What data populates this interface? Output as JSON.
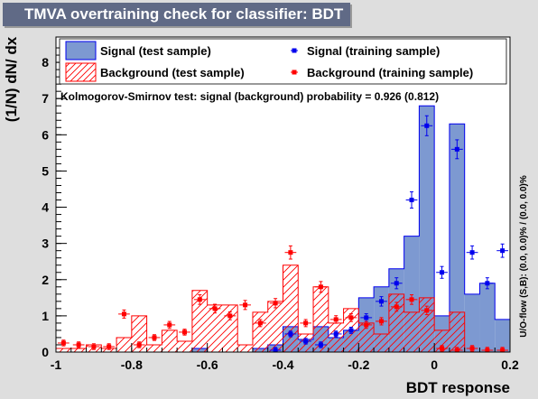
{
  "window": {
    "title": "TMVA overtraining check for classifier: BDT"
  },
  "legend": {
    "items": [
      "Signal (test sample)",
      "Background (test sample)",
      "Signal (training sample)",
      "Background (training sample)"
    ]
  },
  "ks_text": "Kolmogorov-Smirnov test: signal (background) probability = 0.926 (0.812)",
  "overflow_text": "U/O-flow (S,B): (0.0, 0.0)% / (0.0, 0.0)%",
  "colors": {
    "signal_fill": "#7d99d1",
    "signal_line": "#0000ee",
    "background": "#ff0000",
    "frame_bg": "#ffffff",
    "page_bg": "#dedede",
    "title_bg": "#606a86"
  },
  "chart_data": {
    "type": "histogram",
    "xlabel": "BDT response",
    "ylabel": "(1/N) dN/ dx",
    "xlim": [
      -1.0,
      0.2
    ],
    "ylim": [
      0,
      8.7
    ],
    "x_ticks": [
      "-1",
      "-0.8",
      "-0.6",
      "-0.4",
      "-0.2",
      "0",
      "0.2"
    ],
    "y_ticks": [
      "0",
      "1",
      "2",
      "3",
      "4",
      "5",
      "6",
      "7",
      "8"
    ],
    "bin_edges": [
      -1.0,
      -0.96,
      -0.92,
      -0.88,
      -0.84,
      -0.8,
      -0.76,
      -0.72,
      -0.68,
      -0.64,
      -0.6,
      -0.56,
      -0.52,
      -0.48,
      -0.44,
      -0.4,
      -0.36,
      -0.32,
      -0.28,
      -0.24,
      -0.2,
      -0.16,
      -0.12,
      -0.08,
      -0.04,
      0.0,
      0.04,
      0.08,
      0.12,
      0.16,
      0.2
    ],
    "series": [
      {
        "name": "Signal (test sample)",
        "style": "filled",
        "values": [
          0,
          0,
          0,
          0,
          0,
          0,
          0,
          0,
          0,
          0.1,
          0,
          0,
          0,
          0.1,
          0.2,
          0.7,
          0.35,
          0.7,
          0.4,
          0.6,
          1.5,
          1.8,
          2.3,
          3.2,
          6.8,
          1.0,
          6.3,
          1.6,
          1.9,
          0.9
        ]
      },
      {
        "name": "Background (test sample)",
        "style": "hatched",
        "values": [
          0.1,
          0.1,
          0.2,
          0.1,
          0.4,
          1.0,
          0.2,
          0.6,
          0.3,
          1.7,
          1.3,
          1.3,
          0.2,
          1.1,
          1.4,
          2.4,
          0.5,
          1.8,
          0.8,
          1.2,
          0.8,
          0.5,
          1.6,
          1.1,
          1.5,
          0.6,
          1.1,
          0,
          0,
          0
        ]
      },
      {
        "name": "Signal (training sample)",
        "style": "markers",
        "values": [
          0,
          0,
          0,
          0,
          0,
          0,
          0,
          0,
          0,
          0,
          0,
          0,
          0,
          0,
          0.05,
          0.5,
          0.3,
          0.2,
          0.5,
          0.6,
          0.95,
          1.4,
          1.9,
          4.2,
          6.25,
          2.2,
          5.6,
          2.75,
          1.9,
          2.8
        ]
      },
      {
        "name": "Background (training sample)",
        "style": "markers",
        "values": [
          0.25,
          0.2,
          0.15,
          0.15,
          1.05,
          0.2,
          0.4,
          0.75,
          0.55,
          1.45,
          1.2,
          1.0,
          1.3,
          0.8,
          1.35,
          2.75,
          0.8,
          1.8,
          0.9,
          0.95,
          0.75,
          0.85,
          1.25,
          1.45,
          1.15,
          0.1,
          0.05,
          0.1,
          0.05,
          0.05
        ]
      }
    ]
  }
}
